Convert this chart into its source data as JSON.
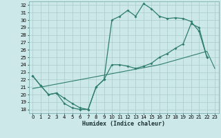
{
  "xlabel": "Humidex (Indice chaleur)",
  "bg_color": "#cce8e8",
  "grid_color": "#aacccc",
  "line_color": "#2e7d6e",
  "xlim": [
    -0.5,
    23.5
  ],
  "ylim": [
    17.5,
    32.5
  ],
  "xticks": [
    0,
    1,
    2,
    3,
    4,
    5,
    6,
    7,
    8,
    9,
    10,
    11,
    12,
    13,
    14,
    15,
    16,
    17,
    18,
    19,
    20,
    21,
    22,
    23
  ],
  "yticks": [
    18,
    19,
    20,
    21,
    22,
    23,
    24,
    25,
    26,
    27,
    28,
    29,
    30,
    31,
    32
  ],
  "curve1_x": [
    0,
    1,
    2,
    3,
    4,
    5,
    6,
    7,
    8,
    9,
    10,
    11,
    12,
    13,
    14,
    15,
    16,
    17,
    18,
    19,
    20,
    21,
    22
  ],
  "curve1_y": [
    22.5,
    21.2,
    20.0,
    20.2,
    18.8,
    18.2,
    18.0,
    18.0,
    21.0,
    22.0,
    30.0,
    30.5,
    31.3,
    30.5,
    32.2,
    31.5,
    30.5,
    30.2,
    30.3,
    30.2,
    29.8,
    28.5,
    25.0
  ],
  "curve2_x": [
    0,
    1,
    2,
    3,
    4,
    5,
    6,
    7,
    8,
    9,
    10,
    11,
    12,
    13,
    14,
    15,
    16,
    17,
    18,
    19,
    20,
    21,
    22
  ],
  "curve2_y": [
    22.5,
    21.2,
    20.0,
    20.2,
    19.5,
    18.8,
    18.2,
    18.0,
    21.0,
    22.0,
    24.0,
    24.0,
    23.8,
    23.5,
    23.8,
    24.2,
    25.0,
    25.5,
    26.2,
    26.8,
    29.5,
    29.0,
    25.0
  ],
  "curve3_x": [
    0,
    1,
    2,
    3,
    4,
    5,
    6,
    7,
    8,
    9,
    10,
    11,
    12,
    13,
    14,
    15,
    16,
    17,
    18,
    19,
    20,
    21,
    22,
    23
  ],
  "curve3_y": [
    20.8,
    21.0,
    21.2,
    21.4,
    21.6,
    21.8,
    22.0,
    22.2,
    22.4,
    22.6,
    22.8,
    23.0,
    23.2,
    23.4,
    23.6,
    23.8,
    24.0,
    24.3,
    24.6,
    24.9,
    25.2,
    25.5,
    25.8,
    23.5
  ]
}
